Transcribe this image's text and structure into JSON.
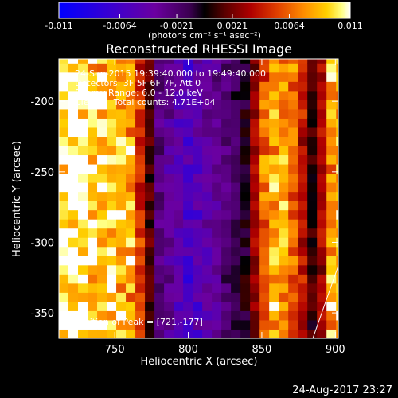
{
  "colorbar": {
    "min": -0.011,
    "max": 0.011,
    "ticks": [
      "-0.011",
      "-0.0064",
      "-0.0021",
      "0.0021",
      "0.0064",
      "0.011"
    ],
    "unit_label": "(photons cm⁻² s⁻¹ asec⁻²)",
    "colors": [
      "#0000ff",
      "#3a00d0",
      "#6b00a0",
      "#4b006b",
      "#000000",
      "#5a0000",
      "#b00000",
      "#e04000",
      "#ff8c00",
      "#ffd000",
      "#ffff80",
      "#ffffff"
    ]
  },
  "chart_data": {
    "type": "heatmap",
    "title": "Reconstructed RHESSI Image",
    "xlabel": "Heliocentric X (arcsec)",
    "ylabel": "Heliocentric Y (arcsec)",
    "xlim": [
      712,
      902
    ],
    "ylim": [
      -368,
      -170
    ],
    "x_ticks": [
      750,
      800,
      850,
      900
    ],
    "y_ticks": [
      -200,
      -250,
      -300,
      -350
    ],
    "annotations": [
      "24-Sep-2015 19:39:40.000 to 19:49:40.000",
      "Detectors: 3F 5F 6F 7F, Att 0",
      "Energy Range: 6.0 - 12.0 keV",
      "Clean     Total counts: 4.71E+04"
    ],
    "peak_label": "Position of Peak = [721,-177]",
    "peak": [
      721,
      -177
    ],
    "bands": [
      {
        "x_center": 728,
        "value": 0.0105
      },
      {
        "x_center": 745,
        "value": 0.0095
      },
      {
        "x_center": 762,
        "value": 0.0085
      },
      {
        "x_center": 779,
        "value": -0.002
      },
      {
        "x_center": 800,
        "value": -0.006
      },
      {
        "x_center": 821,
        "value": -0.003
      },
      {
        "x_center": 840,
        "value": 0.0
      },
      {
        "x_center": 856,
        "value": 0.009
      },
      {
        "x_center": 870,
        "value": 0.0075
      },
      {
        "x_center": 886,
        "value": 0.0
      },
      {
        "x_center": 898,
        "value": 0.0085
      }
    ]
  },
  "footer": {
    "date": "24-Aug-2017 23:27"
  }
}
